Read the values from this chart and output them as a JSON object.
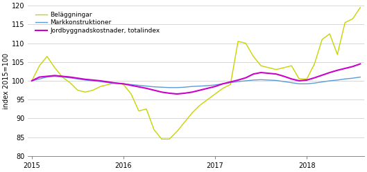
{
  "title": "",
  "ylabel": "index 2015=100",
  "ylim": [
    80,
    120
  ],
  "yticks": [
    80,
    85,
    90,
    95,
    100,
    105,
    110,
    115,
    120
  ],
  "xtick_positions": [
    0,
    12,
    24,
    36
  ],
  "xtick_labels": [
    "2015",
    "2016",
    "2017",
    "2018"
  ],
  "bg_color": "#ffffff",
  "grid_color": "#d0d0d0",
  "markkonstruktioner": {
    "label": "Markkonstruktioner",
    "color": "#5b9bd5",
    "lw": 1.0,
    "values": [
      100.0,
      100.5,
      101.0,
      101.2,
      101.0,
      100.8,
      100.5,
      100.2,
      100.0,
      99.8,
      99.5,
      99.3,
      99.2,
      99.0,
      98.8,
      98.6,
      98.4,
      98.3,
      98.2,
      98.2,
      98.3,
      98.5,
      98.6,
      98.7,
      98.9,
      99.2,
      99.5,
      99.8,
      100.0,
      100.2,
      100.3,
      100.2,
      100.1,
      99.8,
      99.5,
      99.2,
      99.2,
      99.4,
      99.7,
      100.0,
      100.2,
      100.5,
      100.7,
      101.0
    ]
  },
  "belaggningar": {
    "label": "Beläggningar",
    "color": "#c8d400",
    "lw": 1.0,
    "values": [
      100.0,
      104.0,
      106.5,
      103.5,
      101.0,
      99.5,
      97.5,
      97.0,
      97.5,
      98.5,
      99.0,
      99.5,
      99.0,
      96.5,
      92.0,
      92.5,
      87.0,
      84.5,
      84.5,
      86.5,
      89.0,
      91.5,
      93.5,
      95.0,
      96.5,
      98.0,
      99.0,
      110.5,
      110.0,
      106.5,
      104.0,
      103.5,
      103.0,
      103.5,
      104.0,
      100.5,
      100.5,
      104.5,
      111.0,
      112.5,
      107.0,
      115.5,
      116.5,
      119.5
    ]
  },
  "totalindex": {
    "label": "Jordbyggnadskostnader, totalindex",
    "color": "#cc00cc",
    "lw": 1.5,
    "values": [
      100.0,
      101.0,
      101.2,
      101.4,
      101.2,
      101.0,
      100.7,
      100.4,
      100.2,
      100.0,
      99.7,
      99.4,
      99.2,
      98.8,
      98.4,
      98.0,
      97.5,
      97.0,
      96.7,
      96.5,
      96.7,
      97.0,
      97.5,
      98.0,
      98.5,
      99.2,
      99.7,
      100.2,
      100.8,
      101.8,
      102.2,
      102.0,
      101.8,
      101.2,
      100.5,
      100.0,
      100.2,
      100.8,
      101.5,
      102.2,
      102.8,
      103.3,
      103.8,
      104.5
    ]
  }
}
